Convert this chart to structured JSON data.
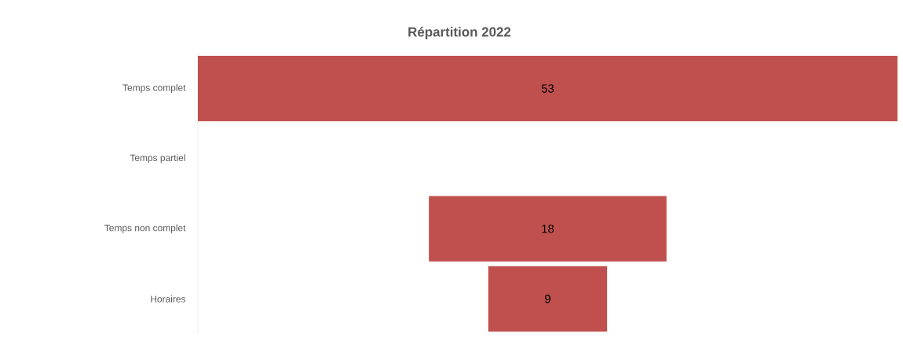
{
  "chart_data": {
    "type": "other",
    "title": "Répartition 2022",
    "categories": [
      "Temps complet",
      "Temps partiel",
      "Temps non complet",
      "Horaires"
    ],
    "values": [
      53,
      null,
      18,
      9
    ],
    "color": "#c0504d",
    "data_labels": true
  }
}
